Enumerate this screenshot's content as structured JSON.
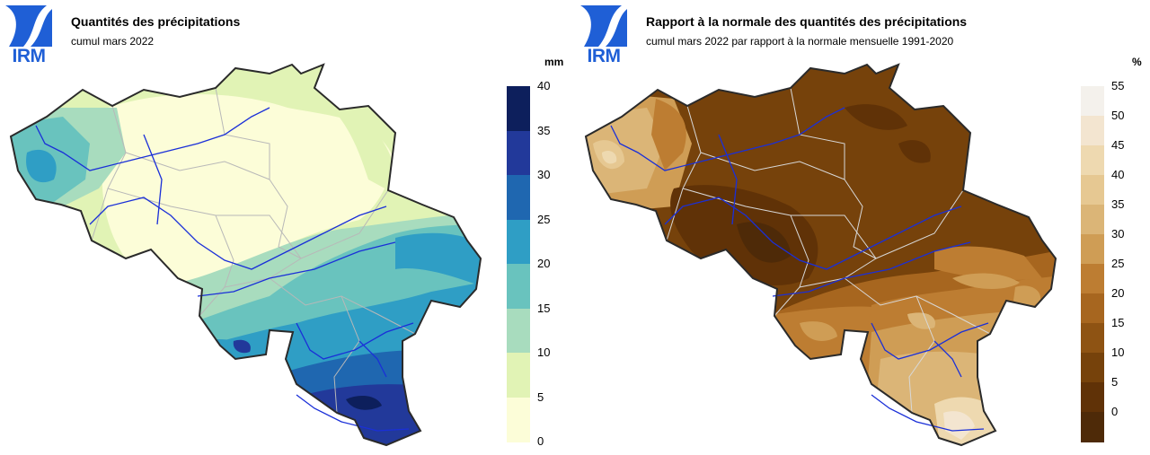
{
  "logo": {
    "text": "IRM",
    "color": "#1f5fd6"
  },
  "panels": [
    {
      "title": "Quantités des précipitations",
      "subtitle": "cumul mars 2022",
      "unit": "mm",
      "legend_ticks": [
        "40",
        "35",
        "30",
        "25",
        "20",
        "15",
        "10",
        "5",
        "0"
      ],
      "legend_colors": [
        "#0d1f5c",
        "#22399a",
        "#1f67b0",
        "#2f9ec5",
        "#69c3be",
        "#a8dcbe",
        "#e1f3b5",
        "#fcfdd8"
      ]
    },
    {
      "title": "Rapport à la normale des quantités des précipitations",
      "subtitle": "cumul mars 2022 par rapport à la normale mensuelle 1991-2020",
      "unit": "%",
      "legend_ticks": [
        "55",
        "50",
        "45",
        "40",
        "35",
        "30",
        "25",
        "20",
        "15",
        "10",
        "5",
        "0"
      ],
      "legend_colors": [
        "#f4f1ec",
        "#f3e5d0",
        "#eed9b0",
        "#e6c892",
        "#dbb577",
        "#cf9d55",
        "#bd7d32",
        "#a7661f",
        "#8e5313",
        "#76420b",
        "#603207",
        "#4e2a08"
      ]
    }
  ]
}
